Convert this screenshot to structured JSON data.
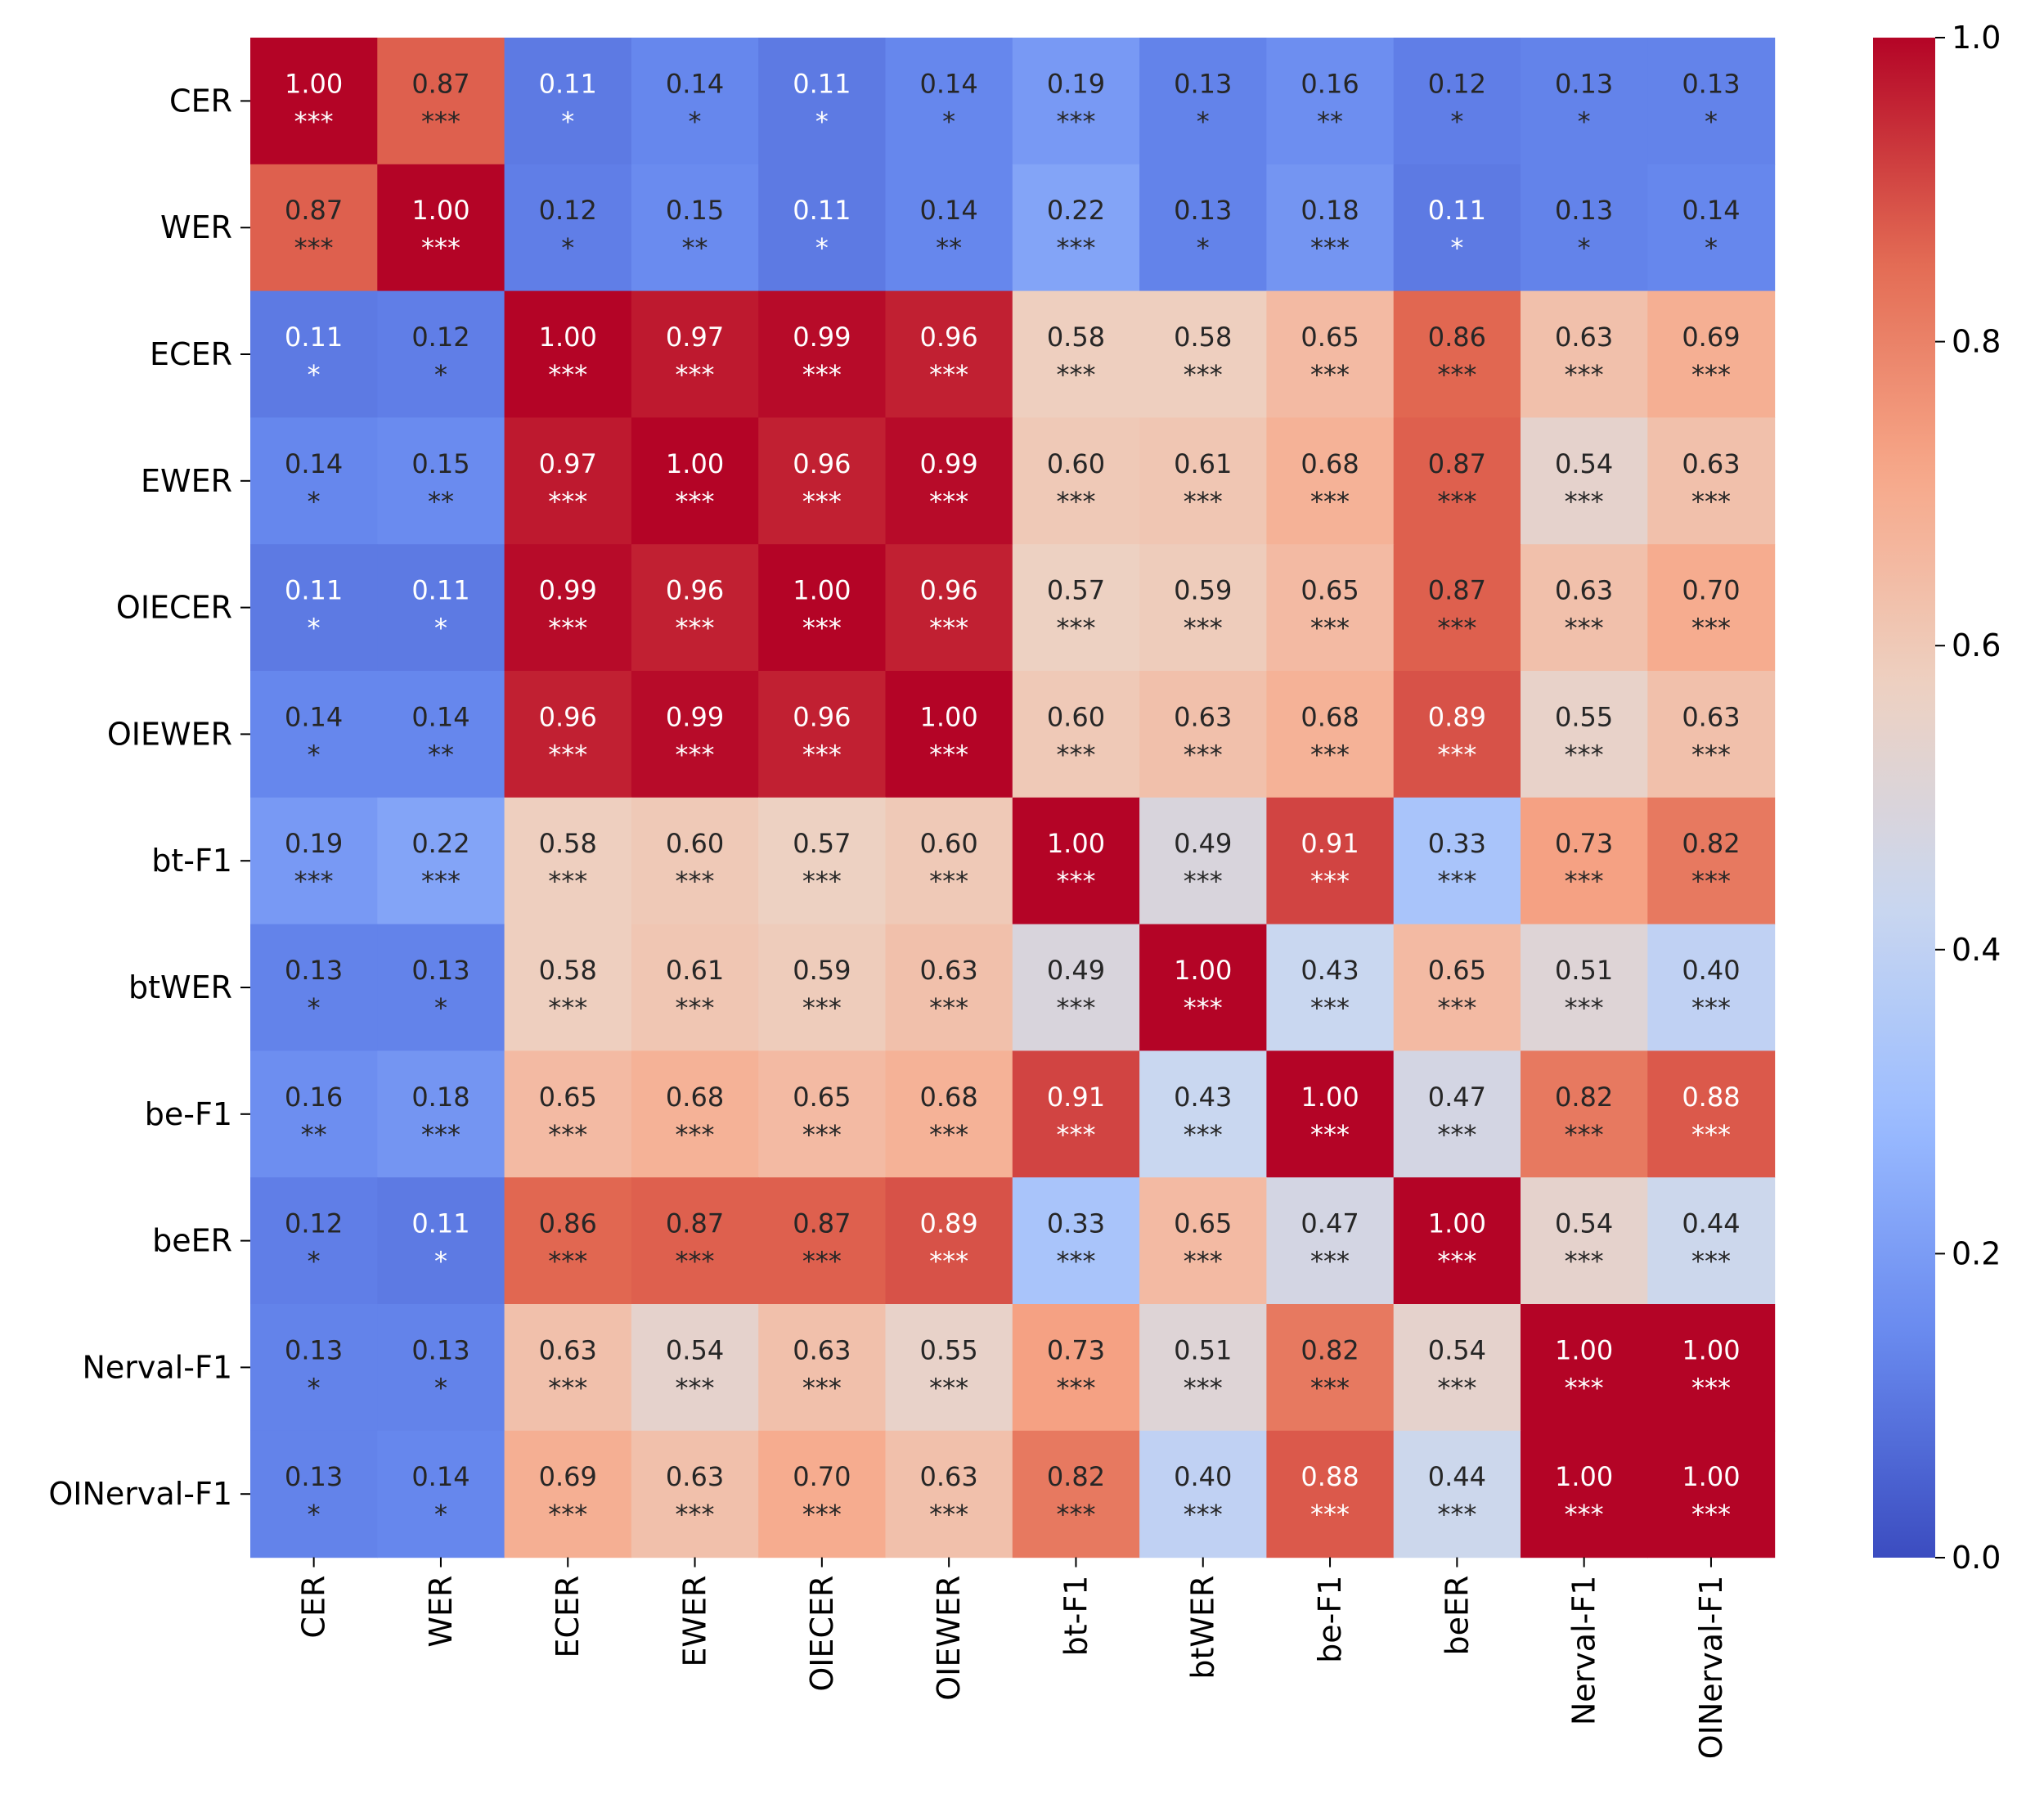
{
  "chart_data": {
    "type": "heatmap",
    "title": "",
    "xlabel": "",
    "ylabel": "",
    "labels": [
      "CER",
      "WER",
      "ECER",
      "EWER",
      "OIECER",
      "OIEWER",
      "bt-F1",
      "btWER",
      "be-F1",
      "beER",
      "Nerval-F1",
      "OINerval-F1"
    ],
    "values": [
      [
        1.0,
        0.87,
        0.11,
        0.14,
        0.11,
        0.14,
        0.19,
        0.13,
        0.16,
        0.12,
        0.13,
        0.13
      ],
      [
        0.87,
        1.0,
        0.12,
        0.15,
        0.11,
        0.14,
        0.22,
        0.13,
        0.18,
        0.11,
        0.13,
        0.14
      ],
      [
        0.11,
        0.12,
        1.0,
        0.97,
        0.99,
        0.96,
        0.58,
        0.58,
        0.65,
        0.86,
        0.63,
        0.69
      ],
      [
        0.14,
        0.15,
        0.97,
        1.0,
        0.96,
        0.99,
        0.6,
        0.61,
        0.68,
        0.87,
        0.54,
        0.63
      ],
      [
        0.11,
        0.11,
        0.99,
        0.96,
        1.0,
        0.96,
        0.57,
        0.59,
        0.65,
        0.87,
        0.63,
        0.7
      ],
      [
        0.14,
        0.14,
        0.96,
        0.99,
        0.96,
        1.0,
        0.6,
        0.63,
        0.68,
        0.89,
        0.55,
        0.63
      ],
      [
        0.19,
        0.22,
        0.58,
        0.6,
        0.57,
        0.6,
        1.0,
        0.49,
        0.91,
        0.33,
        0.73,
        0.82
      ],
      [
        0.13,
        0.13,
        0.58,
        0.61,
        0.59,
        0.63,
        0.49,
        1.0,
        0.43,
        0.65,
        0.51,
        0.4
      ],
      [
        0.16,
        0.18,
        0.65,
        0.68,
        0.65,
        0.68,
        0.91,
        0.43,
        1.0,
        0.47,
        0.82,
        0.88
      ],
      [
        0.12,
        0.11,
        0.86,
        0.87,
        0.87,
        0.89,
        0.33,
        0.65,
        0.47,
        1.0,
        0.54,
        0.44
      ],
      [
        0.13,
        0.13,
        0.63,
        0.54,
        0.63,
        0.55,
        0.73,
        0.51,
        0.82,
        0.54,
        1.0,
        1.0
      ],
      [
        0.13,
        0.14,
        0.69,
        0.63,
        0.7,
        0.63,
        0.82,
        0.4,
        0.88,
        0.44,
        1.0,
        1.0
      ]
    ],
    "significance": [
      [
        "***",
        "***",
        "*",
        "*",
        "*",
        "*",
        "***",
        "*",
        "**",
        "*",
        "*",
        "*"
      ],
      [
        "***",
        "***",
        "*",
        "**",
        "*",
        "**",
        "***",
        "*",
        "***",
        "*",
        "*",
        "*"
      ],
      [
        "*",
        "*",
        "***",
        "***",
        "***",
        "***",
        "***",
        "***",
        "***",
        "***",
        "***",
        "***"
      ],
      [
        "*",
        "**",
        "***",
        "***",
        "***",
        "***",
        "***",
        "***",
        "***",
        "***",
        "***",
        "***"
      ],
      [
        "*",
        "*",
        "***",
        "***",
        "***",
        "***",
        "***",
        "***",
        "***",
        "***",
        "***",
        "***"
      ],
      [
        "*",
        "**",
        "***",
        "***",
        "***",
        "***",
        "***",
        "***",
        "***",
        "***",
        "***",
        "***"
      ],
      [
        "***",
        "***",
        "***",
        "***",
        "***",
        "***",
        "***",
        "***",
        "***",
        "***",
        "***",
        "***"
      ],
      [
        "*",
        "*",
        "***",
        "***",
        "***",
        "***",
        "***",
        "***",
        "***",
        "***",
        "***",
        "***"
      ],
      [
        "**",
        "***",
        "***",
        "***",
        "***",
        "***",
        "***",
        "***",
        "***",
        "***",
        "***",
        "***"
      ],
      [
        "*",
        "*",
        "***",
        "***",
        "***",
        "***",
        "***",
        "***",
        "***",
        "***",
        "***",
        "***"
      ],
      [
        "*",
        "*",
        "***",
        "***",
        "***",
        "***",
        "***",
        "***",
        "***",
        "***",
        "***",
        "***"
      ],
      [
        "*",
        "*",
        "***",
        "***",
        "***",
        "***",
        "***",
        "***",
        "***",
        "***",
        "***",
        "***"
      ]
    ],
    "colormap": "coolwarm",
    "colormap_stops": [
      "#3b4cc0",
      "#6788ee",
      "#9abbff",
      "#c9d7f0",
      "#edd1c2",
      "#f7a889",
      "#e26952",
      "#b40426"
    ],
    "vmin": 0.0,
    "vmax": 1.0,
    "colorbar_ticks": [
      "0.0",
      "0.2",
      "0.4",
      "0.6",
      "0.8",
      "1.0"
    ],
    "colorbar_tick_values": [
      0.0,
      0.2,
      0.4,
      0.6,
      0.8,
      1.0
    ],
    "annotation_colors": {
      "light": "#ffffff",
      "dark": "#262626"
    },
    "grid": false,
    "legend": "colorbar-right"
  }
}
